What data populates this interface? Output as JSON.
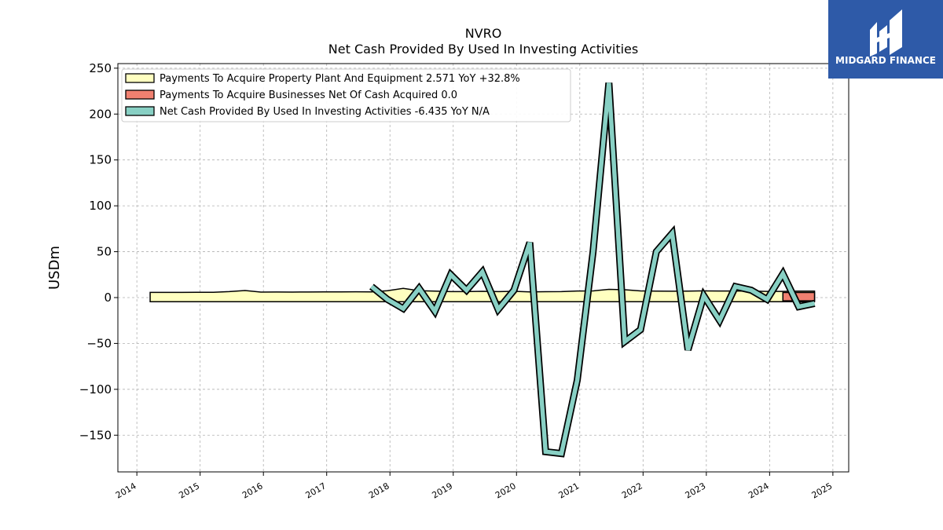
{
  "chart_data": {
    "type": "line",
    "title": "NVRO",
    "subtitle": "Net Cash Provided By Used In Investing Activities",
    "ylabel": "USDm",
    "xlabel": "",
    "xlim": [
      2013.7,
      2025.25
    ],
    "ylim": [
      -190,
      255
    ],
    "x_ticks": [
      "2014",
      "2015",
      "2016",
      "2017",
      "2018",
      "2019",
      "2020",
      "2021",
      "2022",
      "2023",
      "2024",
      "2025"
    ],
    "y_ticks": [
      "250",
      "200",
      "150",
      "100",
      "50",
      "0",
      "−50",
      "−100",
      "−150"
    ],
    "y_tick_values": [
      250,
      200,
      150,
      100,
      50,
      0,
      -50,
      -100,
      -150
    ],
    "grid": true,
    "legend_position": "top-left",
    "series": [
      {
        "name": "Payments To Acquire Property Plant And Equipment  2.571 YoY +32.8%",
        "color": "#ffffc0",
        "style": "band",
        "x": [
          2014.21,
          2014.46,
          2014.71,
          2014.96,
          2015.21,
          2015.46,
          2015.71,
          2015.96,
          2016.21,
          2016.46,
          2016.71,
          2016.96,
          2017.21,
          2017.46,
          2017.71,
          2017.96,
          2018.21,
          2018.46,
          2018.71,
          2018.96,
          2019.21,
          2019.46,
          2019.71,
          2019.96,
          2020.21,
          2020.46,
          2020.71,
          2020.96,
          2021.21,
          2021.46,
          2021.71,
          2021.96,
          2022.21,
          2022.46,
          2022.71,
          2022.96,
          2023.21,
          2023.46,
          2023.71,
          2023.96,
          2024.21,
          2024.46,
          2024.71
        ],
        "values": [
          1.2,
          1.2,
          1.2,
          1.3,
          1.3,
          2.0,
          3.2,
          1.5,
          1.6,
          1.5,
          1.6,
          1.7,
          1.7,
          1.8,
          1.7,
          3.0,
          5.5,
          3.0,
          2.5,
          2.0,
          2.0,
          2.3,
          2.0,
          2.3,
          1.7,
          1.9,
          2.0,
          2.6,
          2.8,
          4.5,
          4.0,
          2.8,
          2.5,
          2.4,
          2.5,
          2.8,
          2.7,
          2.7,
          2.5,
          2.2,
          2.2,
          2.5,
          2.57
        ]
      },
      {
        "name": "Payments To Acquire Businesses Net Of Cash Acquired  0.0",
        "color": "#f08070",
        "style": "band",
        "x": [
          2024.21,
          2024.46,
          2024.71
        ],
        "values": [
          0,
          0,
          0
        ]
      },
      {
        "name": "Net Cash Provided By Used In Investing Activities  -6.435 YoY N/A",
        "color": "#88d0c4",
        "style": "line",
        "x": [
          2017.71,
          2017.96,
          2018.21,
          2018.46,
          2018.71,
          2018.96,
          2019.21,
          2019.46,
          2019.71,
          2019.96,
          2020.21,
          2020.46,
          2020.71,
          2020.96,
          2021.21,
          2021.46,
          2021.71,
          2021.96,
          2022.21,
          2022.46,
          2022.71,
          2022.96,
          2023.21,
          2023.46,
          2023.71,
          2023.96,
          2024.21,
          2024.46,
          2024.71
        ],
        "values": [
          12,
          -2,
          -12,
          10,
          -15,
          25,
          8,
          28,
          -13,
          8,
          60,
          -168,
          -170,
          -90,
          50,
          234,
          -48,
          -35,
          50,
          70,
          -57,
          2,
          -25,
          12,
          8,
          -2,
          26,
          -10,
          -6.4
        ]
      }
    ]
  },
  "logo": {
    "text": "MIDGARD FINANCE",
    "background": "#2e5aa8"
  }
}
